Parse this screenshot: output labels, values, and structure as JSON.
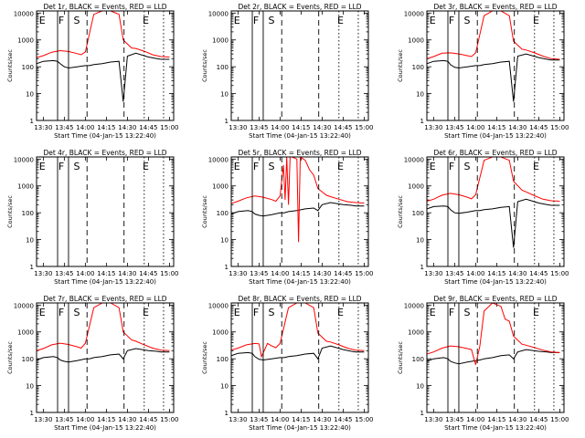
{
  "chart_data": [
    {
      "type": "line",
      "title": "Det 1r, BLACK = Events, RED = LLD",
      "xlabel": "Start Time (04-Jan-15 13:22:40)",
      "ylabel": "Counts/sec",
      "yscale": "log",
      "ylim": [
        1,
        12000
      ],
      "xlim": [
        13.42,
        15.05
      ],
      "xticks": [
        "13:30",
        "13:45",
        "14:00",
        "14:15",
        "14:30",
        "14:45",
        "15:00"
      ],
      "yticks": [
        "1",
        "10",
        "100",
        "1000",
        "10000"
      ],
      "markers": [
        "E",
        "F",
        "S",
        "E"
      ],
      "series": [
        {
          "name": "Events",
          "color": "#000000",
          "x": [
            13.42,
            13.5,
            13.62,
            13.67,
            13.7,
            13.75,
            13.8,
            13.9,
            14.0,
            14.05,
            14.1,
            14.2,
            14.3,
            14.4,
            14.45,
            14.5,
            14.6,
            14.75,
            14.85,
            14.9,
            15.0
          ],
          "y": [
            130,
            160,
            170,
            160,
            130,
            100,
            90,
            100,
            110,
            110,
            120,
            130,
            150,
            160,
            5,
            250,
            320,
            230,
            200,
            190,
            190
          ]
        },
        {
          "name": "LLD",
          "color": "#ff0000",
          "x": [
            13.42,
            13.5,
            13.6,
            13.7,
            13.8,
            13.9,
            13.95,
            14.0,
            14.1,
            14.2,
            14.3,
            14.4,
            14.45,
            14.55,
            14.6,
            14.7,
            14.8,
            14.9,
            15.0
          ],
          "y": [
            220,
            260,
            350,
            400,
            370,
            310,
            280,
            360,
            9000,
            12000,
            12000,
            9000,
            1000,
            500,
            480,
            380,
            280,
            240,
            230
          ]
        }
      ]
    },
    {
      "type": "line",
      "title": "Det 2r, BLACK = Events, RED = LLD",
      "xlabel": "Start Time (04-Jan-15 13:22:40)",
      "ylabel": "Counts/sec",
      "yscale": "log",
      "ylim": [
        1,
        12000
      ],
      "xlim": [
        13.42,
        15.05
      ],
      "xticks": [
        "13:30",
        "13:45",
        "14:00",
        "14:15",
        "14:30",
        "14:45",
        "15:00"
      ],
      "yticks": [
        "1",
        "10",
        "100",
        "1000",
        "10000"
      ],
      "markers": [
        "E",
        "F",
        "S",
        "E"
      ],
      "series": []
    },
    {
      "type": "line",
      "title": "Det 3r, BLACK = Events, RED = LLD",
      "xlabel": "Start Time (04-Jan-15 13:22:40)",
      "ylabel": "Counts/sec",
      "yscale": "log",
      "ylim": [
        1,
        12000
      ],
      "xlim": [
        13.42,
        15.05
      ],
      "xticks": [
        "13:30",
        "13:45",
        "14:00",
        "14:15",
        "14:30",
        "14:45",
        "15:00"
      ],
      "yticks": [
        "1",
        "10",
        "100",
        "1000",
        "10000"
      ],
      "markers": [
        "E",
        "F",
        "S",
        "E"
      ],
      "series": [
        {
          "name": "Events",
          "color": "#000000",
          "x": [
            13.42,
            13.5,
            13.62,
            13.67,
            13.7,
            13.75,
            13.8,
            13.9,
            14.0,
            14.05,
            14.1,
            14.2,
            14.3,
            14.4,
            14.45,
            14.5,
            14.6,
            14.75,
            14.85,
            14.9,
            15.0
          ],
          "y": [
            130,
            160,
            170,
            160,
            120,
            95,
            90,
            100,
            110,
            110,
            120,
            130,
            150,
            160,
            5,
            250,
            300,
            220,
            190,
            180,
            180
          ]
        },
        {
          "name": "LLD",
          "color": "#ff0000",
          "x": [
            13.42,
            13.5,
            13.6,
            13.7,
            13.8,
            13.9,
            13.95,
            14.0,
            14.1,
            14.2,
            14.3,
            14.4,
            14.45,
            14.55,
            14.6,
            14.7,
            14.8,
            14.9,
            15.0
          ],
          "y": [
            200,
            240,
            320,
            330,
            300,
            260,
            240,
            330,
            8000,
            12000,
            12000,
            8000,
            900,
            450,
            420,
            330,
            250,
            200,
            190
          ]
        }
      ]
    },
    {
      "type": "line",
      "title": "Det 4r, BLACK = Events, RED = LLD",
      "xlabel": "Start Time (04-Jan-15 13:22:40)",
      "ylabel": "Counts/sec",
      "yscale": "log",
      "ylim": [
        1,
        12000
      ],
      "xlim": [
        13.42,
        15.05
      ],
      "xticks": [
        "13:30",
        "13:45",
        "14:00",
        "14:15",
        "14:30",
        "14:45",
        "15:00"
      ],
      "yticks": [
        "1",
        "10",
        "100",
        "1000",
        "10000"
      ],
      "markers": [
        "E",
        "F",
        "S",
        "E"
      ],
      "series": []
    },
    {
      "type": "line",
      "title": "Det 5r, BLACK = Events, RED = LLD",
      "xlabel": "Start Time (04-Jan-15 13:22:40)",
      "ylabel": "Counts/sec",
      "yscale": "log",
      "ylim": [
        1,
        12000
      ],
      "xlim": [
        13.42,
        15.05
      ],
      "xticks": [
        "13:30",
        "13:45",
        "14:00",
        "14:15",
        "14:30",
        "14:45",
        "15:00"
      ],
      "yticks": [
        "1",
        "10",
        "100",
        "1000",
        "10000"
      ],
      "markers": [
        "E",
        "F",
        "S",
        "E"
      ],
      "series": [
        {
          "name": "Events",
          "color": "#000000",
          "x": [
            13.42,
            13.5,
            13.62,
            13.67,
            13.7,
            13.75,
            13.8,
            13.9,
            14.0,
            14.05,
            14.1,
            14.2,
            14.3,
            14.4,
            14.45,
            14.5,
            14.6,
            14.75,
            14.85,
            14.9,
            15.0
          ],
          "y": [
            90,
            110,
            120,
            110,
            90,
            80,
            75,
            85,
            100,
            100,
            110,
            120,
            140,
            150,
            120,
            200,
            240,
            200,
            190,
            180,
            180
          ]
        },
        {
          "name": "LLD",
          "color": "#ff0000",
          "x": [
            13.42,
            13.5,
            13.6,
            13.7,
            13.8,
            13.9,
            13.95,
            14.0,
            14.04,
            14.06,
            14.08,
            14.1,
            14.12,
            14.14,
            14.2,
            14.22,
            14.24,
            14.3,
            14.35,
            14.4,
            14.45,
            14.55,
            14.6,
            14.7,
            14.8,
            14.9,
            15.0
          ],
          "y": [
            220,
            270,
            360,
            420,
            380,
            310,
            270,
            420,
            6000,
            300,
            12000,
            200,
            12000,
            12000,
            10000,
            8,
            12000,
            9000,
            4000,
            2500,
            800,
            450,
            400,
            320,
            260,
            240,
            230
          ]
        }
      ]
    },
    {
      "type": "line",
      "title": "Det 6r, BLACK = Events, RED = LLD",
      "xlabel": "Start Time (04-Jan-15 13:22:40)",
      "ylabel": "Counts/sec",
      "yscale": "log",
      "ylim": [
        1,
        12000
      ],
      "xlim": [
        13.42,
        15.05
      ],
      "xticks": [
        "13:30",
        "13:45",
        "14:00",
        "14:15",
        "14:30",
        "14:45",
        "15:00"
      ],
      "yticks": [
        "1",
        "10",
        "100",
        "1000",
        "10000"
      ],
      "markers": [
        "E",
        "F",
        "S",
        "E"
      ],
      "series": [
        {
          "name": "Events",
          "color": "#000000",
          "x": [
            13.42,
            13.5,
            13.62,
            13.67,
            13.7,
            13.75,
            13.8,
            13.9,
            14.0,
            14.05,
            14.1,
            14.2,
            14.3,
            14.4,
            14.45,
            14.5,
            14.6,
            14.75,
            14.85,
            14.9,
            15.0
          ],
          "y": [
            140,
            170,
            180,
            170,
            130,
            100,
            95,
            105,
            120,
            120,
            130,
            140,
            160,
            170,
            5,
            260,
            320,
            230,
            200,
            190,
            190
          ]
        },
        {
          "name": "LLD",
          "color": "#ff0000",
          "x": [
            13.42,
            13.5,
            13.6,
            13.7,
            13.8,
            13.9,
            13.95,
            14.0,
            14.1,
            14.2,
            14.3,
            14.4,
            14.45,
            14.55,
            14.6,
            14.7,
            14.8,
            14.9,
            15.0
          ],
          "y": [
            270,
            320,
            450,
            530,
            470,
            380,
            330,
            470,
            9000,
            12000,
            12000,
            9000,
            1500,
            700,
            600,
            430,
            320,
            280,
            270
          ]
        }
      ]
    },
    {
      "type": "line",
      "title": "Det 7r, BLACK = Events, RED = LLD",
      "xlabel": "Start Time (04-Jan-15 13:22:40)",
      "ylabel": "Counts/sec",
      "yscale": "log",
      "ylim": [
        1,
        12000
      ],
      "xlim": [
        13.42,
        15.05
      ],
      "xticks": [
        "13:30",
        "13:45",
        "14:00",
        "14:15",
        "14:30",
        "14:45",
        "15:00"
      ],
      "yticks": [
        "1",
        "10",
        "100",
        "1000",
        "10000"
      ],
      "markers": [
        "E",
        "F",
        "S",
        "E"
      ],
      "series": [
        {
          "name": "Events",
          "color": "#000000",
          "x": [
            13.42,
            13.5,
            13.62,
            13.67,
            13.7,
            13.75,
            13.8,
            13.9,
            14.0,
            14.05,
            14.1,
            14.2,
            14.3,
            14.4,
            14.45,
            14.5,
            14.6,
            14.75,
            14.85,
            14.9,
            15.0
          ],
          "y": [
            90,
            110,
            120,
            110,
            90,
            80,
            75,
            85,
            100,
            100,
            110,
            120,
            140,
            150,
            100,
            200,
            240,
            200,
            190,
            180,
            180
          ]
        },
        {
          "name": "LLD",
          "color": "#ff0000",
          "x": [
            13.42,
            13.5,
            13.6,
            13.7,
            13.8,
            13.9,
            13.95,
            14.0,
            14.1,
            14.2,
            14.3,
            14.4,
            14.45,
            14.55,
            14.6,
            14.7,
            14.8,
            14.9,
            15.0
          ],
          "y": [
            200,
            240,
            330,
            380,
            340,
            280,
            250,
            380,
            8000,
            12000,
            12000,
            8000,
            1000,
            500,
            450,
            330,
            250,
            210,
            200
          ]
        }
      ]
    },
    {
      "type": "line",
      "title": "Det 8r, BLACK = Events, RED = LLD",
      "xlabel": "Start Time (04-Jan-15 13:22:40)",
      "ylabel": "Counts/sec",
      "yscale": "log",
      "ylim": [
        1,
        12000
      ],
      "xlim": [
        13.42,
        15.05
      ],
      "xticks": [
        "13:30",
        "13:45",
        "14:00",
        "14:15",
        "14:30",
        "14:45",
        "15:00"
      ],
      "yticks": [
        "1",
        "10",
        "100",
        "1000",
        "10000"
      ],
      "markers": [
        "E",
        "F",
        "S",
        "E"
      ],
      "series": [
        {
          "name": "Events",
          "color": "#000000",
          "x": [
            13.42,
            13.5,
            13.62,
            13.67,
            13.7,
            13.75,
            13.8,
            13.9,
            14.0,
            14.05,
            14.1,
            14.2,
            14.3,
            14.4,
            14.45,
            14.5,
            14.6,
            14.75,
            14.85,
            14.9,
            15.0
          ],
          "y": [
            130,
            160,
            170,
            160,
            120,
            95,
            90,
            100,
            110,
            110,
            120,
            130,
            150,
            160,
            100,
            250,
            300,
            220,
            190,
            180,
            180
          ]
        },
        {
          "name": "LLD",
          "color": "#ff0000",
          "x": [
            13.42,
            13.5,
            13.6,
            13.7,
            13.75,
            13.78,
            13.85,
            13.9,
            13.95,
            14.0,
            14.1,
            14.2,
            14.3,
            14.4,
            14.45,
            14.55,
            14.6,
            14.7,
            14.8,
            14.9,
            15.0
          ],
          "y": [
            210,
            250,
            330,
            370,
            360,
            120,
            370,
            300,
            260,
            370,
            8000,
            12000,
            12000,
            8000,
            900,
            450,
            420,
            330,
            250,
            210,
            200
          ]
        }
      ]
    },
    {
      "type": "line",
      "title": "Det 9r, BLACK = Events, RED = LLD",
      "xlabel": "Start Time (04-Jan-15 13:22:40)",
      "ylabel": "Counts/sec",
      "yscale": "log",
      "ylim": [
        1,
        12000
      ],
      "xlim": [
        13.42,
        15.05
      ],
      "xticks": [
        "13:30",
        "13:45",
        "14:00",
        "14:15",
        "14:30",
        "14:45",
        "15:00"
      ],
      "yticks": [
        "1",
        "10",
        "100",
        "1000",
        "10000"
      ],
      "markers": [
        "E",
        "F",
        "S",
        "E"
      ],
      "series": [
        {
          "name": "Events",
          "color": "#000000",
          "x": [
            13.42,
            13.5,
            13.62,
            13.67,
            13.7,
            13.75,
            13.8,
            13.9,
            14.0,
            14.05,
            14.1,
            14.2,
            14.3,
            14.4,
            14.45,
            14.5,
            14.6,
            14.75,
            14.85,
            14.9,
            15.0
          ],
          "y": [
            80,
            100,
            110,
            100,
            80,
            70,
            65,
            75,
            85,
            90,
            100,
            110,
            130,
            140,
            100,
            180,
            220,
            190,
            180,
            170,
            170
          ]
        },
        {
          "name": "LLD",
          "color": "#ff0000",
          "x": [
            13.42,
            13.5,
            13.6,
            13.7,
            13.8,
            13.9,
            13.95,
            14.0,
            14.05,
            14.1,
            14.2,
            14.3,
            14.35,
            14.4,
            14.45,
            14.55,
            14.6,
            14.7,
            14.8,
            14.9,
            15.0
          ],
          "y": [
            150,
            180,
            250,
            300,
            280,
            240,
            220,
            60,
            300,
            6000,
            12000,
            9000,
            3000,
            2500,
            700,
            350,
            320,
            260,
            210,
            180,
            170
          ]
        }
      ]
    }
  ]
}
